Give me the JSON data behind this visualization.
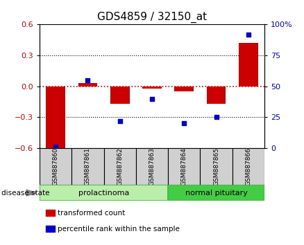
{
  "title": "GDS4859 / 32150_at",
  "samples": [
    "GSM887860",
    "GSM887861",
    "GSM887862",
    "GSM887863",
    "GSM887864",
    "GSM887865",
    "GSM887866"
  ],
  "transformed_count": [
    -0.63,
    0.03,
    -0.17,
    -0.02,
    -0.05,
    -0.17,
    0.42
  ],
  "percentile_rank": [
    1,
    55,
    22,
    40,
    20,
    25,
    92
  ],
  "ylim_left": [
    -0.6,
    0.6
  ],
  "ylim_right": [
    0,
    100
  ],
  "yticks_left": [
    -0.6,
    -0.3,
    0.0,
    0.3,
    0.6
  ],
  "yticks_right": [
    0,
    25,
    50,
    75,
    100
  ],
  "bar_color": "#cc0000",
  "scatter_color": "#0000cc",
  "zero_line_color": "#cc0000",
  "grid_color": "#000000",
  "groups": [
    {
      "label": "prolactinoma",
      "indices": [
        0,
        1,
        2,
        3
      ],
      "color": "#bbeeaa",
      "border_color": "#44bb44"
    },
    {
      "label": "normal pituitary",
      "indices": [
        4,
        5,
        6
      ],
      "color": "#44cc44",
      "border_color": "#44bb44"
    }
  ],
  "disease_state_label": "disease state",
  "legend": [
    {
      "label": "transformed count",
      "color": "#cc0000"
    },
    {
      "label": "percentile rank within the sample",
      "color": "#0000cc"
    }
  ],
  "bar_width": 0.6,
  "title_fontsize": 11,
  "tick_label_fontsize": 8,
  "bg_color": "#ffffff"
}
